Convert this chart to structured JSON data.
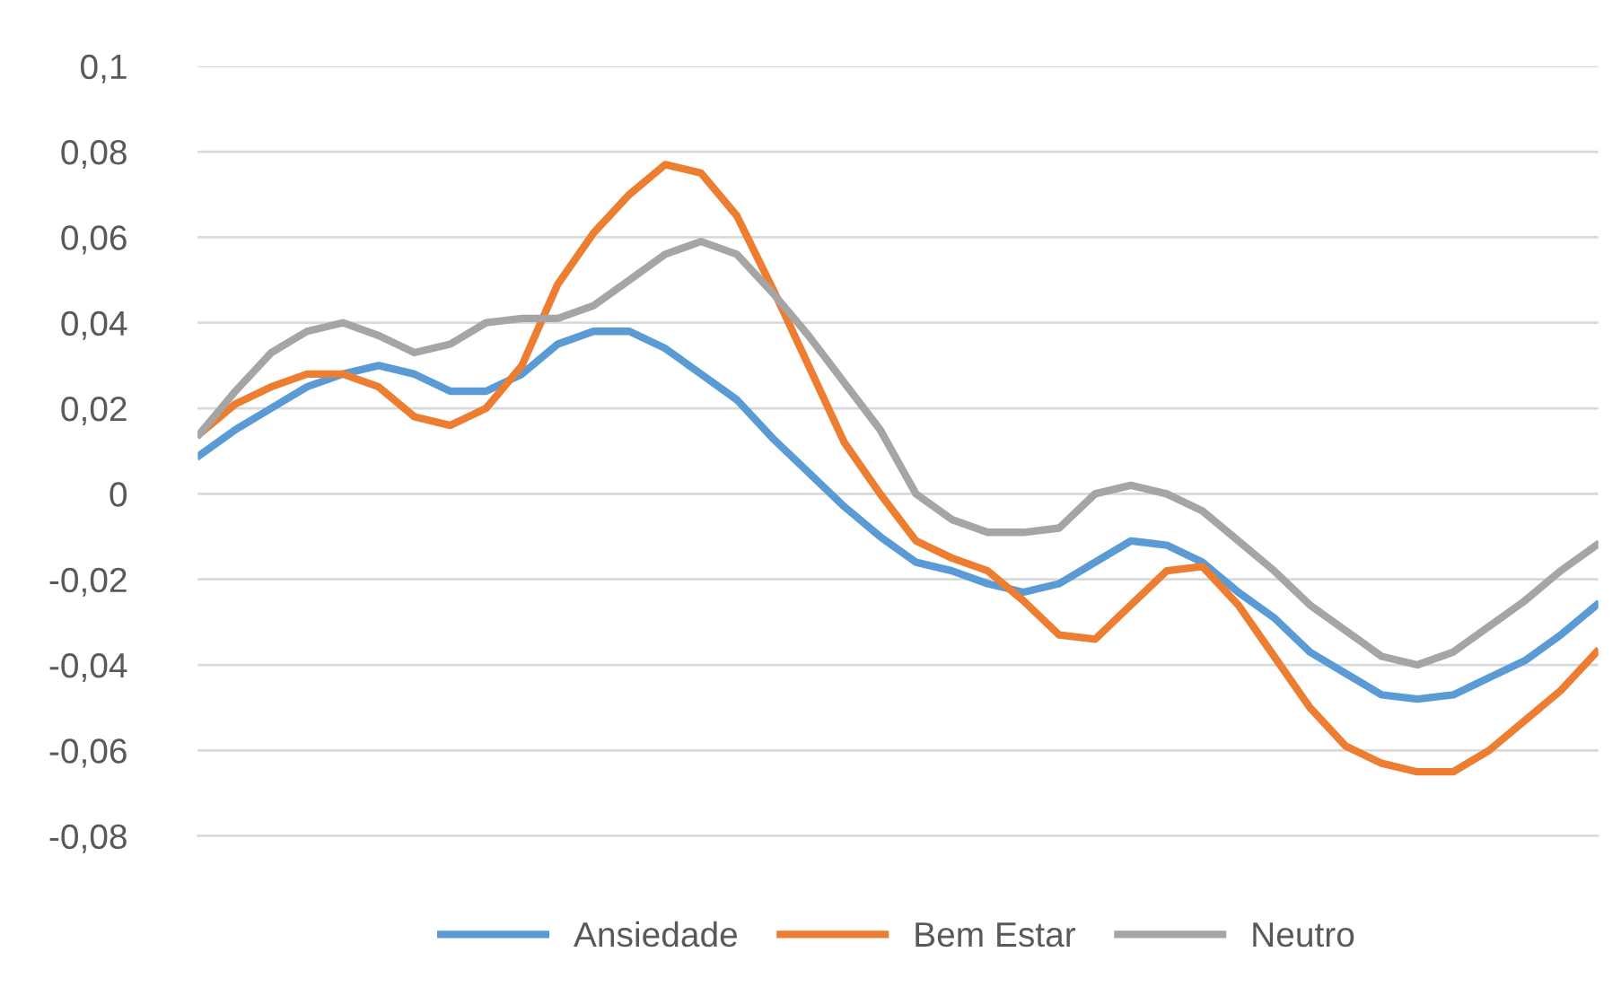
{
  "chart_data": {
    "type": "line",
    "categories": [
      null,
      null,
      null,
      null,
      null,
      null,
      null,
      null,
      null,
      null,
      null,
      null,
      null,
      null,
      null,
      null,
      null,
      null,
      null,
      null,
      null,
      null,
      null,
      null,
      null,
      null,
      null,
      null,
      null,
      null,
      null,
      null,
      null,
      null,
      null,
      null,
      null,
      null,
      null,
      null
    ],
    "series": [
      {
        "name": "Ansiedade",
        "color": "#5b9bd5",
        "values": [
          0.009,
          0.015,
          0.02,
          0.025,
          0.028,
          0.03,
          0.028,
          0.024,
          0.024,
          0.028,
          0.035,
          0.038,
          0.038,
          0.034,
          0.028,
          0.022,
          0.013,
          0.005,
          -0.003,
          -0.01,
          -0.016,
          -0.018,
          -0.021,
          -0.023,
          -0.021,
          -0.016,
          -0.011,
          -0.012,
          -0.016,
          -0.023,
          -0.029,
          -0.037,
          -0.042,
          -0.047,
          -0.048,
          -0.047,
          -0.043,
          -0.039,
          -0.033,
          -0.026
        ]
      },
      {
        "name": "Bem Estar",
        "color": "#ed7d31",
        "values": [
          0.014,
          0.021,
          0.025,
          0.028,
          0.028,
          0.025,
          0.018,
          0.016,
          0.02,
          0.03,
          0.049,
          0.061,
          0.07,
          0.077,
          0.075,
          0.065,
          0.048,
          0.03,
          0.012,
          0.0,
          -0.011,
          -0.015,
          -0.018,
          -0.025,
          -0.033,
          -0.034,
          -0.026,
          -0.018,
          -0.017,
          -0.026,
          -0.038,
          -0.05,
          -0.059,
          -0.063,
          -0.065,
          -0.065,
          -0.06,
          -0.053,
          -0.046,
          -0.037
        ]
      },
      {
        "name": "Neutro",
        "color": "#a5a5a5",
        "values": [
          0.014,
          0.024,
          0.033,
          0.038,
          0.04,
          0.037,
          0.033,
          0.035,
          0.04,
          0.041,
          0.041,
          0.044,
          0.05,
          0.056,
          0.059,
          0.056,
          0.047,
          0.037,
          0.026,
          0.015,
          0.0,
          -0.006,
          -0.009,
          -0.009,
          -0.008,
          0.0,
          0.002,
          0.0,
          -0.004,
          -0.011,
          -0.018,
          -0.026,
          -0.032,
          -0.038,
          -0.04,
          -0.037,
          -0.031,
          -0.025,
          -0.018,
          -0.012
        ]
      }
    ],
    "ylim": [
      -0.08,
      0.1
    ],
    "yticks": [
      {
        "value": -0.08,
        "label": "-0,08"
      },
      {
        "value": -0.06,
        "label": "-0,06"
      },
      {
        "value": -0.04,
        "label": "-0,04"
      },
      {
        "value": -0.02,
        "label": "-0,02"
      },
      0,
      {
        "value": 0.02,
        "label": "0,02"
      },
      {
        "value": 0.04,
        "label": "0,04"
      },
      {
        "value": 0.06,
        "label": "0,06"
      },
      {
        "value": 0.08,
        "label": "0,08"
      },
      {
        "value": 0.1,
        "label": "0,1"
      }
    ],
    "grid": "y",
    "legend": "bottom",
    "tick_labels": "y",
    "marker": "none",
    "line_style": "solid"
  }
}
